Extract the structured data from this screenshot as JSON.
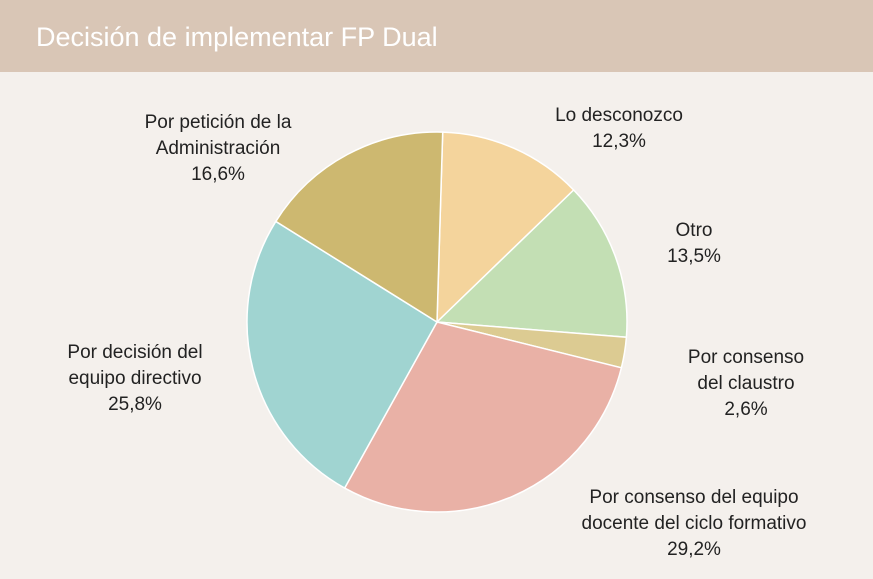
{
  "chart_data": {
    "type": "pie",
    "title": "Decisión de implementar FP Dual",
    "categories": [
      "Lo desconozco",
      "Otro",
      "Por consenso del claustro",
      "Por consenso del equipo docente del ciclo formativo",
      "Por decisión del equipo directivo",
      "Por petición de la Administración"
    ],
    "values": [
      12.3,
      13.5,
      2.6,
      29.2,
      25.8,
      16.6
    ],
    "value_labels": [
      "12,3%",
      "13,5%",
      "2,6%",
      "29,2%",
      "25,8%",
      "16,6%"
    ],
    "colors": [
      "#f4d49c",
      "#c3dfb4",
      "#dccb92",
      "#e9b1a6",
      "#a0d4d1",
      "#cdb870"
    ]
  }
}
